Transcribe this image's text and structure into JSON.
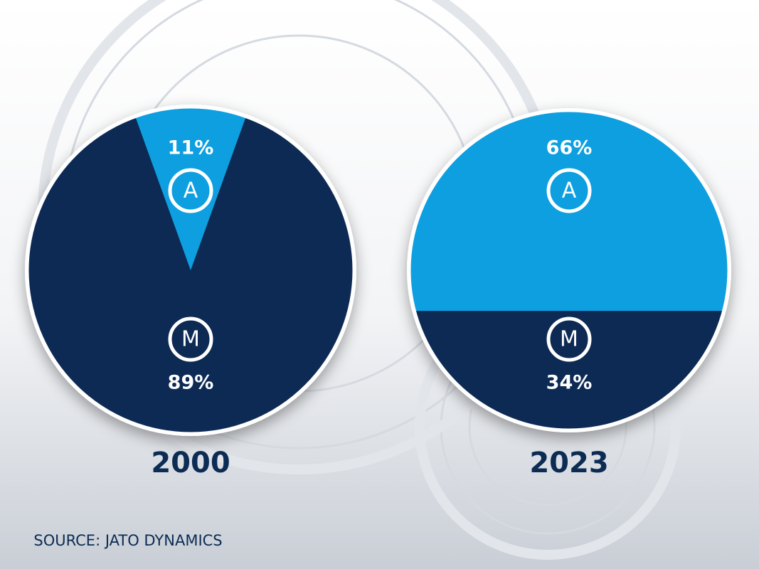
{
  "chart_data": [
    {
      "type": "pie",
      "title": "2000",
      "categories": [
        "A",
        "M"
      ],
      "values": [
        11,
        89
      ],
      "value_labels": [
        "11%",
        "89%"
      ],
      "colors": [
        "#0a9fe0",
        "#0c2c54"
      ]
    },
    {
      "type": "pie",
      "title": "2023",
      "categories": [
        "A",
        "M"
      ],
      "values": [
        66,
        34
      ],
      "value_labels": [
        "66%",
        "34%"
      ],
      "colors": [
        "#0a9fe0",
        "#0c2c54"
      ]
    }
  ],
  "source": "SOURCE: JATO DYNAMICS"
}
